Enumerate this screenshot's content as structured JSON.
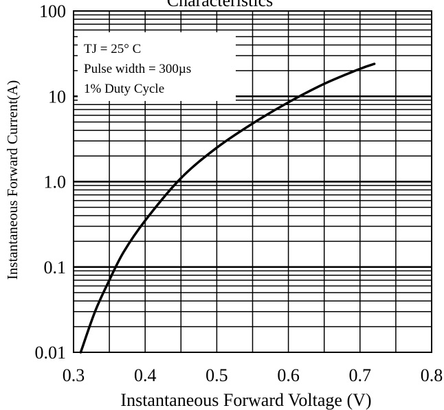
{
  "chart_data": {
    "type": "line",
    "title": "Characteristics",
    "xlabel": "Instantaneous Forward Voltage (V)",
    "ylabel": "Instantaneous Forward Current(A)",
    "xlim": [
      0.3,
      0.8
    ],
    "ylim": [
      0.01,
      100
    ],
    "yscale": "log",
    "grid": true,
    "x_ticks": [
      0.3,
      0.4,
      0.5,
      0.6,
      0.7,
      0.8
    ],
    "x_tick_labels": [
      "0.3",
      "0.4",
      "0.5",
      "0.6",
      "0.7",
      "0.8"
    ],
    "y_ticks": [
      0.01,
      0.1,
      1,
      10,
      100
    ],
    "y_tick_labels": [
      "0.01",
      "0.1",
      "1.0",
      "10",
      "100"
    ],
    "annotations": [
      "TJ = 25° C",
      "Pulse width = 300µs",
      "1% Duty Cycle"
    ],
    "annotation_placement": "top-left",
    "series": [
      {
        "x": [
          0.31,
          0.33,
          0.35,
          0.37,
          0.4,
          0.45,
          0.5,
          0.55,
          0.6,
          0.65,
          0.7,
          0.72
        ],
        "y": [
          0.01,
          0.03,
          0.07,
          0.15,
          0.35,
          1.1,
          2.5,
          4.8,
          8.5,
          14,
          21,
          24
        ]
      }
    ]
  }
}
